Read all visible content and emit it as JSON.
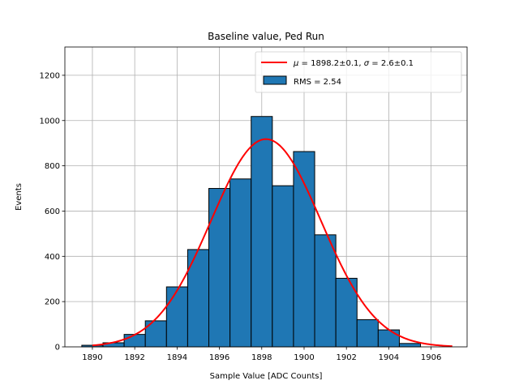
{
  "chart_data": {
    "type": "bar",
    "title": "Baseline value, Ped Run",
    "xlabel": "Sample Value [ADC Counts]",
    "ylabel": "Events",
    "xlim": [
      1888.7,
      1907.7
    ],
    "ylim": [
      0,
      1325
    ],
    "grid": true,
    "legend_position": "top-right",
    "x_ticks": [
      1890,
      1892,
      1894,
      1896,
      1898,
      1900,
      1902,
      1904,
      1906
    ],
    "y_ticks": [
      0,
      200,
      400,
      600,
      800,
      1000,
      1200
    ],
    "histogram": {
      "name": "RMS = 2.54",
      "color": "#1f77b4",
      "edge_color": "#000000",
      "bin_edges": [
        1889.5,
        1890.5,
        1891.5,
        1892.5,
        1893.5,
        1894.5,
        1895.5,
        1896.5,
        1897.5,
        1898.5,
        1899.5,
        1900.5,
        1901.5,
        1902.5,
        1903.5,
        1904.5,
        1905.5,
        1906.5
      ],
      "counts": [
        7,
        18,
        55,
        115,
        265,
        430,
        700,
        742,
        1018,
        712,
        863,
        495,
        303,
        120,
        75,
        15,
        0
      ]
    },
    "fit": {
      "name": "$\\mu = 1898.2\\pm0.1$, $\\sigma = 2.6\\pm0.1$",
      "label_parts": [
        "μ",
        " = 1898.2±0.1, ",
        "σ",
        " = 2.6±0.1"
      ],
      "type": "gaussian",
      "color": "#ff0000",
      "mu": 1898.2,
      "sigma": 2.6,
      "amplitude": 918,
      "x_range": [
        1890,
        1907
      ]
    },
    "legend": [
      "$\\mu = 1898.2\\pm0.1$, $\\sigma = 2.6\\pm0.1$",
      "RMS = 2.54"
    ]
  }
}
